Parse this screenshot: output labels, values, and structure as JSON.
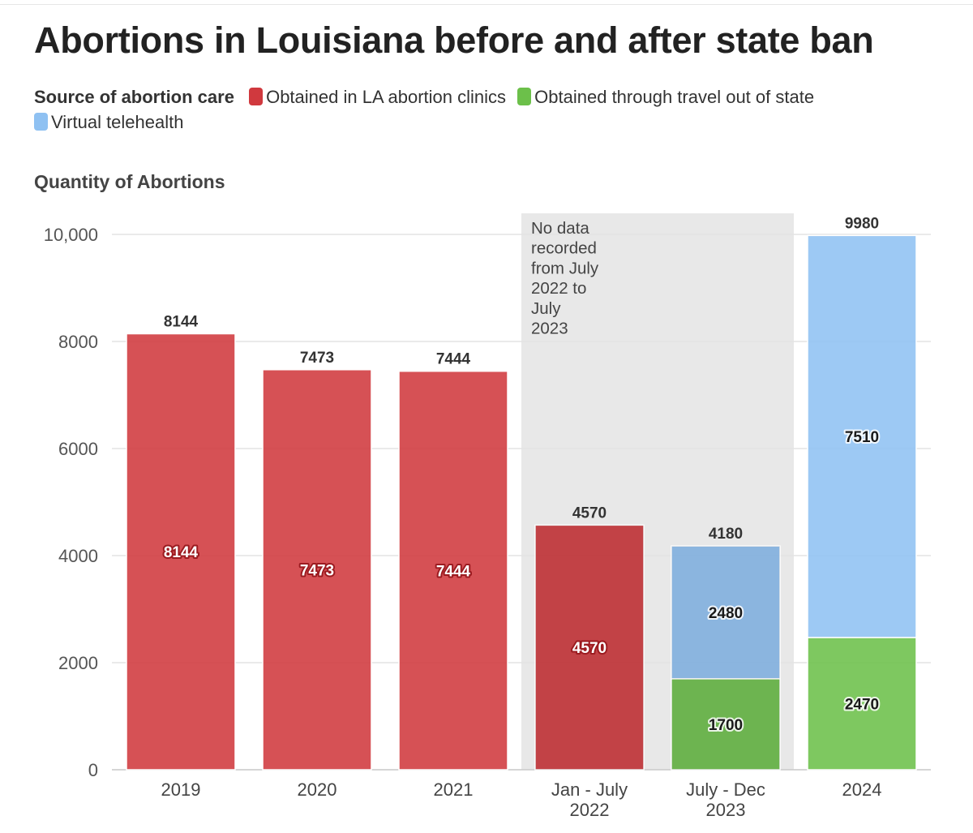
{
  "chart_data": {
    "type": "bar",
    "stacked": true,
    "title": "Abortions in Louisiana before and after state ban",
    "legend": {
      "heading": "Source of abortion care",
      "items": [
        {
          "key": "clinics",
          "label": "Obtained in LA abortion clinics",
          "color": "#d0393e"
        },
        {
          "key": "travel",
          "label": "Obtained through travel out of state",
          "color": "#6cc04a"
        },
        {
          "key": "telehealth",
          "label": "Virtual telehealth",
          "color": "#8fc1f2"
        }
      ]
    },
    "ylabel": "Quantity of Abortions",
    "xlabel": "",
    "ylim": [
      0,
      10000
    ],
    "yticks": [
      0,
      2000,
      4000,
      6000,
      8000,
      10000
    ],
    "ytick_labels": [
      "0",
      "2000",
      "4000",
      "6000",
      "8000",
      "10,000"
    ],
    "categories": [
      {
        "label": [
          "2019"
        ],
        "in_shaded_period": false
      },
      {
        "label": [
          "2020"
        ],
        "in_shaded_period": false
      },
      {
        "label": [
          "2021"
        ],
        "in_shaded_period": false
      },
      {
        "label": [
          "Jan - July",
          "2022"
        ],
        "in_shaded_period": true
      },
      {
        "label": [
          "July - Dec",
          "2023"
        ],
        "in_shaded_period": true
      },
      {
        "label": [
          "2024"
        ],
        "in_shaded_period": false
      }
    ],
    "series": [
      {
        "name": "Obtained in LA abortion clinics",
        "key": "clinics",
        "values": [
          8144,
          7473,
          7444,
          4570,
          null,
          null
        ]
      },
      {
        "name": "Obtained through travel out of state",
        "key": "travel",
        "values": [
          null,
          null,
          null,
          null,
          1700,
          2470
        ]
      },
      {
        "name": "Virtual telehealth",
        "key": "telehealth",
        "values": [
          null,
          null,
          null,
          null,
          2480,
          7510
        ]
      }
    ],
    "totals": [
      8144,
      7473,
      7444,
      4570,
      4180,
      9980
    ],
    "annotation": {
      "lines": [
        "No data",
        "recorded",
        "from July",
        "2022 to",
        "July",
        "2023"
      ]
    },
    "grid": true
  }
}
